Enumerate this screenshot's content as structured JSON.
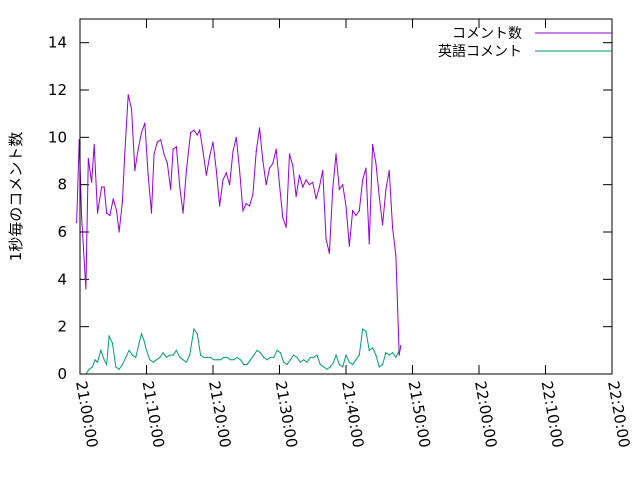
{
  "chart_data": {
    "type": "line",
    "ylabel": "1秒毎のコメント数",
    "ylim": [
      0,
      15
    ],
    "yticks": [
      "0",
      "2",
      "4",
      "6",
      "8",
      "10",
      "12",
      "14"
    ],
    "xlim_minutes": [
      1260,
      1340
    ],
    "xticks": [
      {
        "label": "21:00:00",
        "minute": 1260
      },
      {
        "label": "21:10:00",
        "minute": 1270
      },
      {
        "label": "21:20:00",
        "minute": 1280
      },
      {
        "label": "21:30:00",
        "minute": 1290
      },
      {
        "label": "21:40:00",
        "minute": 1300
      },
      {
        "label": "21:50:00",
        "minute": 1310
      },
      {
        "label": "22:00:00",
        "minute": 1320
      },
      {
        "label": "22:10:00",
        "minute": 1330
      },
      {
        "label": "22:20:00",
        "minute": 1340
      }
    ],
    "legend_position": "top-right",
    "grid": false,
    "series": [
      {
        "name": "コメント数",
        "color": "#9400d3",
        "points": [
          [
            "20:59:30",
            6.4
          ],
          [
            "20:59:53",
            9.9
          ],
          [
            "21:00:15",
            6.6
          ],
          [
            "21:00:53",
            3.6
          ],
          [
            "21:01:15",
            9.1
          ],
          [
            "21:01:45",
            8.1
          ],
          [
            "21:02:08",
            9.7
          ],
          [
            "21:02:38",
            6.8
          ],
          [
            "21:03:15",
            7.9
          ],
          [
            "21:03:38",
            7.9
          ],
          [
            "21:04:00",
            6.8
          ],
          [
            "21:04:30",
            6.7
          ],
          [
            "21:05:00",
            7.4
          ],
          [
            "21:05:30",
            6.9
          ],
          [
            "21:05:53",
            6.0
          ],
          [
            "21:06:23",
            7.3
          ],
          [
            "21:06:45",
            9.4
          ],
          [
            "21:07:15",
            11.8
          ],
          [
            "21:07:45",
            11.2
          ],
          [
            "21:08:15",
            8.6
          ],
          [
            "21:08:45",
            9.5
          ],
          [
            "21:09:15",
            10.2
          ],
          [
            "21:09:45",
            10.6
          ],
          [
            "21:10:15",
            8.4
          ],
          [
            "21:10:45",
            6.8
          ],
          [
            "21:11:08",
            9.3
          ],
          [
            "21:11:38",
            9.8
          ],
          [
            "21:12:08",
            9.9
          ],
          [
            "21:12:38",
            9.3
          ],
          [
            "21:13:08",
            8.9
          ],
          [
            "21:13:38",
            7.8
          ],
          [
            "21:14:00",
            9.5
          ],
          [
            "21:14:30",
            9.6
          ],
          [
            "21:15:00",
            7.9
          ],
          [
            "21:15:30",
            6.8
          ],
          [
            "21:16:00",
            8.6
          ],
          [
            "21:16:38",
            10.2
          ],
          [
            "21:17:08",
            10.3
          ],
          [
            "21:17:38",
            10.1
          ],
          [
            "21:18:00",
            10.3
          ],
          [
            "21:18:30",
            9.4
          ],
          [
            "21:19:00",
            8.4
          ],
          [
            "21:19:30",
            9.2
          ],
          [
            "21:20:00",
            9.8
          ],
          [
            "21:20:30",
            8.6
          ],
          [
            "21:21:00",
            7.1
          ],
          [
            "21:21:30",
            8.2
          ],
          [
            "21:22:00",
            8.5
          ],
          [
            "21:22:30",
            8.0
          ],
          [
            "21:23:00",
            9.4
          ],
          [
            "21:23:30",
            10.0
          ],
          [
            "21:24:00",
            8.6
          ],
          [
            "21:24:30",
            6.9
          ],
          [
            "21:25:00",
            7.2
          ],
          [
            "21:25:30",
            7.1
          ],
          [
            "21:26:00",
            7.6
          ],
          [
            "21:26:30",
            9.4
          ],
          [
            "21:27:00",
            10.4
          ],
          [
            "21:27:30",
            9.0
          ],
          [
            "21:28:00",
            8.0
          ],
          [
            "21:28:30",
            8.7
          ],
          [
            "21:29:00",
            8.9
          ],
          [
            "21:29:30",
            9.5
          ],
          [
            "21:30:00",
            8.0
          ],
          [
            "21:30:30",
            6.6
          ],
          [
            "21:31:00",
            6.2
          ],
          [
            "21:31:30",
            9.3
          ],
          [
            "21:32:00",
            8.8
          ],
          [
            "21:32:30",
            7.5
          ],
          [
            "21:33:00",
            8.4
          ],
          [
            "21:33:30",
            7.9
          ],
          [
            "21:34:00",
            8.2
          ],
          [
            "21:34:30",
            8.0
          ],
          [
            "21:35:00",
            8.1
          ],
          [
            "21:35:30",
            7.4
          ],
          [
            "21:36:00",
            7.9
          ],
          [
            "21:36:30",
            8.6
          ],
          [
            "21:37:00",
            5.7
          ],
          [
            "21:37:30",
            5.1
          ],
          [
            "21:38:00",
            7.8
          ],
          [
            "21:38:30",
            9.3
          ],
          [
            "21:39:00",
            7.8
          ],
          [
            "21:39:30",
            8.0
          ],
          [
            "21:40:00",
            7.1
          ],
          [
            "21:40:30",
            5.4
          ],
          [
            "21:41:00",
            6.9
          ],
          [
            "21:41:30",
            6.7
          ],
          [
            "21:42:00",
            6.9
          ],
          [
            "21:42:30",
            8.2
          ],
          [
            "21:43:00",
            8.7
          ],
          [
            "21:43:30",
            5.5
          ],
          [
            "21:44:00",
            9.7
          ],
          [
            "21:44:30",
            8.9
          ],
          [
            "21:45:00",
            7.5
          ],
          [
            "21:45:30",
            6.3
          ],
          [
            "21:46:00",
            7.8
          ],
          [
            "21:46:30",
            8.6
          ],
          [
            "21:47:00",
            6.2
          ],
          [
            "21:47:30",
            5.0
          ],
          [
            "21:48:00",
            0.8
          ],
          [
            "21:48:15",
            1.2
          ]
        ]
      },
      {
        "name": "英語コメント",
        "color": "#009e73",
        "points": [
          [
            "21:00:23",
            0.0
          ],
          [
            "21:00:53",
            0.0
          ],
          [
            "21:01:23",
            0.2
          ],
          [
            "21:01:53",
            0.3
          ],
          [
            "21:02:15",
            0.6
          ],
          [
            "21:02:38",
            0.5
          ],
          [
            "21:03:08",
            1.0
          ],
          [
            "21:03:38",
            0.6
          ],
          [
            "21:04:00",
            0.4
          ],
          [
            "21:04:23",
            1.6
          ],
          [
            "21:04:53",
            1.3
          ],
          [
            "21:05:23",
            0.3
          ],
          [
            "21:05:53",
            0.2
          ],
          [
            "21:06:23",
            0.4
          ],
          [
            "21:06:53",
            0.7
          ],
          [
            "21:07:23",
            1.0
          ],
          [
            "21:07:53",
            0.8
          ],
          [
            "21:08:23",
            0.7
          ],
          [
            "21:08:53",
            1.3
          ],
          [
            "21:09:15",
            1.7
          ],
          [
            "21:09:38",
            1.4
          ],
          [
            "21:10:00",
            1.0
          ],
          [
            "21:10:30",
            0.6
          ],
          [
            "21:11:00",
            0.5
          ],
          [
            "21:11:30",
            0.6
          ],
          [
            "21:12:00",
            0.7
          ],
          [
            "21:12:30",
            0.9
          ],
          [
            "21:13:00",
            0.7
          ],
          [
            "21:13:30",
            0.8
          ],
          [
            "21:14:00",
            0.8
          ],
          [
            "21:14:30",
            1.0
          ],
          [
            "21:15:00",
            0.7
          ],
          [
            "21:15:30",
            0.6
          ],
          [
            "21:16:00",
            0.5
          ],
          [
            "21:16:30",
            0.8
          ],
          [
            "21:17:08",
            1.9
          ],
          [
            "21:17:38",
            1.7
          ],
          [
            "21:18:08",
            0.8
          ],
          [
            "21:18:38",
            0.7
          ],
          [
            "21:19:08",
            0.7
          ],
          [
            "21:19:38",
            0.7
          ],
          [
            "21:20:08",
            0.6
          ],
          [
            "21:20:38",
            0.6
          ],
          [
            "21:21:08",
            0.6
          ],
          [
            "21:21:38",
            0.7
          ],
          [
            "21:22:08",
            0.7
          ],
          [
            "21:22:38",
            0.6
          ],
          [
            "21:23:08",
            0.6
          ],
          [
            "21:23:38",
            0.7
          ],
          [
            "21:24:08",
            0.6
          ],
          [
            "21:24:38",
            0.4
          ],
          [
            "21:25:08",
            0.4
          ],
          [
            "21:25:38",
            0.6
          ],
          [
            "21:26:08",
            0.8
          ],
          [
            "21:26:38",
            1.0
          ],
          [
            "21:27:08",
            0.9
          ],
          [
            "21:27:38",
            0.7
          ],
          [
            "21:28:08",
            0.6
          ],
          [
            "21:28:38",
            0.7
          ],
          [
            "21:29:08",
            0.7
          ],
          [
            "21:29:38",
            1.0
          ],
          [
            "21:30:08",
            0.9
          ],
          [
            "21:30:38",
            0.5
          ],
          [
            "21:31:08",
            0.4
          ],
          [
            "21:31:38",
            0.6
          ],
          [
            "21:32:08",
            0.8
          ],
          [
            "21:32:38",
            0.7
          ],
          [
            "21:33:08",
            0.5
          ],
          [
            "21:33:38",
            0.6
          ],
          [
            "21:34:08",
            0.5
          ],
          [
            "21:34:38",
            0.7
          ],
          [
            "21:35:08",
            0.7
          ],
          [
            "21:35:38",
            0.8
          ],
          [
            "21:36:08",
            0.4
          ],
          [
            "21:36:38",
            0.3
          ],
          [
            "21:37:08",
            0.2
          ],
          [
            "21:37:38",
            0.3
          ],
          [
            "21:38:08",
            0.5
          ],
          [
            "21:38:30",
            0.8
          ],
          [
            "21:39:00",
            0.4
          ],
          [
            "21:39:30",
            0.3
          ],
          [
            "21:40:00",
            0.8
          ],
          [
            "21:40:30",
            0.5
          ],
          [
            "21:41:00",
            0.4
          ],
          [
            "21:41:30",
            0.6
          ],
          [
            "21:42:00",
            0.8
          ],
          [
            "21:42:30",
            1.9
          ],
          [
            "21:43:00",
            1.8
          ],
          [
            "21:43:30",
            1.0
          ],
          [
            "21:44:00",
            1.1
          ],
          [
            "21:44:30",
            0.8
          ],
          [
            "21:45:00",
            0.3
          ],
          [
            "21:45:30",
            0.4
          ],
          [
            "21:46:00",
            0.9
          ],
          [
            "21:46:30",
            0.8
          ],
          [
            "21:47:00",
            0.9
          ],
          [
            "21:47:30",
            0.7
          ],
          [
            "21:48:00",
            1.0
          ]
        ]
      }
    ]
  }
}
